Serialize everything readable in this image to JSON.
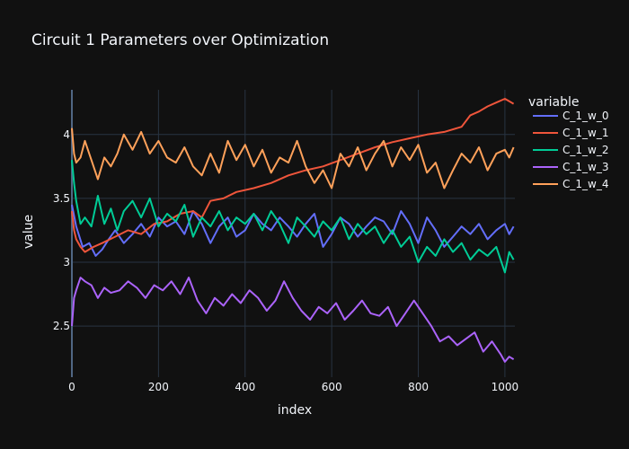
{
  "chart_data": {
    "type": "line",
    "title": "Circuit 1 Parameters over Optimization",
    "xlabel": "index",
    "ylabel": "value",
    "legend_title": "variable",
    "legend_position": "right",
    "grid": true,
    "xlim": [
      0,
      1023
    ],
    "ylim": [
      2.1,
      4.35
    ],
    "x_ticks": [
      0,
      200,
      400,
      600,
      800,
      1000
    ],
    "y_ticks": [
      2.5,
      3,
      3.5,
      4
    ],
    "y_tick_labels": [
      "2.5",
      "3",
      "3.5",
      "4"
    ],
    "theme": {
      "background": "#111111",
      "grid_color": "#283442",
      "text_color": "#f2f5fa"
    },
    "series": [
      {
        "name": "C_1_w_0",
        "color": "#636efa",
        "x": [
          0,
          10,
          25,
          40,
          55,
          70,
          85,
          100,
          120,
          140,
          160,
          180,
          200,
          220,
          240,
          260,
          280,
          300,
          320,
          340,
          360,
          380,
          400,
          420,
          440,
          460,
          480,
          500,
          520,
          540,
          560,
          580,
          600,
          620,
          640,
          660,
          680,
          700,
          720,
          740,
          760,
          780,
          800,
          820,
          840,
          860,
          880,
          900,
          920,
          940,
          960,
          980,
          1000,
          1010,
          1020
        ],
        "values": [
          3.45,
          3.28,
          3.12,
          3.15,
          3.05,
          3.1,
          3.18,
          3.25,
          3.15,
          3.22,
          3.3,
          3.2,
          3.35,
          3.28,
          3.32,
          3.22,
          3.4,
          3.3,
          3.15,
          3.28,
          3.35,
          3.2,
          3.25,
          3.38,
          3.3,
          3.25,
          3.35,
          3.28,
          3.2,
          3.3,
          3.38,
          3.12,
          3.22,
          3.35,
          3.3,
          3.2,
          3.28,
          3.35,
          3.32,
          3.22,
          3.4,
          3.3,
          3.15,
          3.35,
          3.25,
          3.12,
          3.2,
          3.28,
          3.22,
          3.3,
          3.18,
          3.25,
          3.3,
          3.22,
          3.28
        ]
      },
      {
        "name": "C_1_w_1",
        "color": "#ef553b",
        "x": [
          0,
          5,
          10,
          20,
          30,
          50,
          70,
          100,
          130,
          160,
          190,
          220,
          250,
          280,
          300,
          320,
          350,
          380,
          420,
          460,
          500,
          540,
          580,
          620,
          660,
          700,
          740,
          780,
          820,
          860,
          900,
          920,
          940,
          960,
          980,
          1000,
          1010,
          1020
        ],
        "values": [
          3.4,
          3.25,
          3.18,
          3.12,
          3.08,
          3.12,
          3.15,
          3.2,
          3.25,
          3.22,
          3.3,
          3.32,
          3.38,
          3.4,
          3.35,
          3.48,
          3.5,
          3.55,
          3.58,
          3.62,
          3.68,
          3.72,
          3.75,
          3.8,
          3.85,
          3.9,
          3.94,
          3.97,
          4.0,
          4.02,
          4.06,
          4.15,
          4.18,
          4.22,
          4.25,
          4.28,
          4.26,
          4.24
        ]
      },
      {
        "name": "C_1_w_2",
        "color": "#00cc96",
        "x": [
          0,
          5,
          10,
          20,
          30,
          45,
          60,
          75,
          90,
          105,
          120,
          140,
          160,
          180,
          200,
          220,
          240,
          260,
          280,
          300,
          320,
          340,
          360,
          380,
          400,
          420,
          440,
          460,
          480,
          500,
          520,
          540,
          560,
          580,
          600,
          620,
          640,
          660,
          680,
          700,
          720,
          740,
          760,
          780,
          800,
          820,
          840,
          860,
          880,
          900,
          920,
          940,
          960,
          980,
          1000,
          1010,
          1020
        ],
        "values": [
          3.8,
          3.62,
          3.48,
          3.3,
          3.35,
          3.28,
          3.52,
          3.3,
          3.42,
          3.25,
          3.4,
          3.48,
          3.35,
          3.5,
          3.28,
          3.38,
          3.32,
          3.45,
          3.2,
          3.35,
          3.28,
          3.4,
          3.25,
          3.35,
          3.3,
          3.38,
          3.25,
          3.4,
          3.3,
          3.15,
          3.35,
          3.28,
          3.2,
          3.32,
          3.25,
          3.35,
          3.18,
          3.3,
          3.22,
          3.28,
          3.15,
          3.25,
          3.12,
          3.2,
          3.0,
          3.12,
          3.05,
          3.18,
          3.08,
          3.15,
          3.02,
          3.1,
          3.05,
          3.12,
          2.92,
          3.08,
          3.02
        ]
      },
      {
        "name": "C_1_w_3",
        "color": "#ab63fa",
        "x": [
          0,
          5,
          10,
          20,
          30,
          45,
          60,
          75,
          90,
          110,
          130,
          150,
          170,
          190,
          210,
          230,
          250,
          270,
          290,
          310,
          330,
          350,
          370,
          390,
          410,
          430,
          450,
          470,
          490,
          510,
          530,
          550,
          570,
          590,
          610,
          630,
          650,
          670,
          690,
          710,
          730,
          750,
          770,
          790,
          810,
          830,
          850,
          870,
          890,
          910,
          930,
          950,
          970,
          990,
          1000,
          1010,
          1020
        ],
        "values": [
          2.5,
          2.72,
          2.78,
          2.88,
          2.85,
          2.82,
          2.72,
          2.8,
          2.76,
          2.78,
          2.85,
          2.8,
          2.72,
          2.82,
          2.78,
          2.85,
          2.75,
          2.88,
          2.7,
          2.6,
          2.72,
          2.66,
          2.75,
          2.68,
          2.78,
          2.72,
          2.62,
          2.7,
          2.85,
          2.72,
          2.62,
          2.55,
          2.65,
          2.6,
          2.68,
          2.55,
          2.62,
          2.7,
          2.6,
          2.58,
          2.65,
          2.5,
          2.6,
          2.7,
          2.6,
          2.5,
          2.38,
          2.42,
          2.35,
          2.4,
          2.45,
          2.3,
          2.38,
          2.28,
          2.22,
          2.26,
          2.24
        ]
      },
      {
        "name": "C_1_w_4",
        "color": "#ffa15a",
        "x": [
          0,
          5,
          10,
          20,
          30,
          45,
          60,
          75,
          90,
          105,
          120,
          140,
          160,
          180,
          200,
          220,
          240,
          260,
          280,
          300,
          320,
          340,
          360,
          380,
          400,
          420,
          440,
          460,
          480,
          500,
          520,
          540,
          560,
          580,
          600,
          620,
          640,
          660,
          680,
          700,
          720,
          740,
          760,
          780,
          800,
          820,
          840,
          860,
          880,
          900,
          920,
          940,
          960,
          980,
          1000,
          1010,
          1020
        ],
        "values": [
          4.05,
          3.85,
          3.78,
          3.82,
          3.95,
          3.8,
          3.65,
          3.82,
          3.75,
          3.85,
          4.0,
          3.88,
          4.02,
          3.85,
          3.95,
          3.82,
          3.78,
          3.9,
          3.75,
          3.68,
          3.85,
          3.7,
          3.95,
          3.8,
          3.92,
          3.75,
          3.88,
          3.7,
          3.82,
          3.78,
          3.95,
          3.75,
          3.62,
          3.72,
          3.58,
          3.85,
          3.75,
          3.9,
          3.72,
          3.85,
          3.95,
          3.75,
          3.9,
          3.8,
          3.92,
          3.7,
          3.78,
          3.58,
          3.72,
          3.85,
          3.78,
          3.9,
          3.72,
          3.85,
          3.88,
          3.82,
          3.9
        ]
      }
    ]
  }
}
